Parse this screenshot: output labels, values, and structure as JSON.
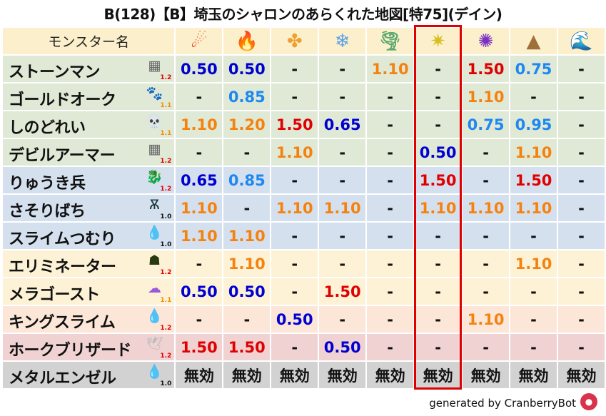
{
  "title": "B(128)【B】埼玉のシャロンのあらくれた地図[特75](デイン)",
  "header": {
    "name_label": "モンスター名",
    "elements": [
      {
        "icon": "fireball-icon",
        "glyph": "☄",
        "color": "#e0401a"
      },
      {
        "icon": "flame-icon",
        "glyph": "🔥",
        "color": "#f05a1a"
      },
      {
        "icon": "explosion-icon",
        "glyph": "✤",
        "color": "#f0a030"
      },
      {
        "icon": "ice-flower-icon",
        "glyph": "❄",
        "color": "#5aa0e8"
      },
      {
        "icon": "tornado-icon",
        "glyph": "🌪",
        "color": "#5aa870"
      },
      {
        "icon": "lightning-star-icon",
        "glyph": "✷",
        "color": "#d8c020"
      },
      {
        "icon": "dark-swirl-icon",
        "glyph": "✺",
        "color": "#7a30c0"
      },
      {
        "icon": "earth-rock-icon",
        "glyph": "▲",
        "color": "#a0703a"
      },
      {
        "icon": "water-wave-icon",
        "glyph": "🌊",
        "color": "#2070d0"
      }
    ]
  },
  "highlight_column": 5,
  "colors": {
    "weak_strong": "#0000d0",
    "weak": "#1e88f0",
    "resist": "#f5820f",
    "resist_strong": "#e00000",
    "normal": "#111111",
    "highlight_border": "#e00000"
  },
  "monsters": [
    {
      "name": "ストーンマン",
      "icon": "brick-wall-icon",
      "glyph": "▦",
      "icolor": "#666",
      "level": "1.2",
      "bg": "#dfe9d6",
      "values": [
        "0.50",
        "0.50",
        "-",
        "-",
        "1.10",
        "-",
        "1.50",
        "0.75",
        "-"
      ]
    },
    {
      "name": "ゴールドオーク",
      "icon": "paw-icon",
      "glyph": "🐾",
      "icolor": "#e08a10",
      "level": "1.1",
      "bg": "#dfe9d6",
      "values": [
        "-",
        "0.85",
        "-",
        "-",
        "-",
        "-",
        "1.10",
        "-",
        "-"
      ]
    },
    {
      "name": "しのどれい",
      "icon": "skull-icon",
      "glyph": "💀",
      "icolor": "#e89aa8",
      "level": "1.1",
      "bg": "#dfe9d6",
      "values": [
        "1.10",
        "1.20",
        "1.50",
        "0.65",
        "-",
        "-",
        "0.75",
        "0.95",
        "-"
      ]
    },
    {
      "name": "デビルアーマー",
      "icon": "brick-wall-icon",
      "glyph": "▦",
      "icolor": "#666",
      "level": "1.2",
      "bg": "#dfe9d6",
      "values": [
        "-",
        "-",
        "1.10",
        "-",
        "-",
        "0.50",
        "-",
        "1.10",
        "-"
      ]
    },
    {
      "name": "りゅうき兵",
      "icon": "dragon-icon",
      "glyph": "🐉",
      "icolor": "#c01818",
      "level": "1.2",
      "bg": "#d5e0ef",
      "values": [
        "0.65",
        "0.85",
        "-",
        "-",
        "-",
        "1.50",
        "-",
        "1.50",
        "-"
      ]
    },
    {
      "name": "さそりばち",
      "icon": "bug-icon",
      "glyph": "Ѫ",
      "icolor": "#1a3a3a",
      "level": "1.0",
      "bg": "#d5e0ef",
      "values": [
        "1.10",
        "-",
        "1.10",
        "1.10",
        "-",
        "1.10",
        "1.10",
        "1.10",
        "-"
      ]
    },
    {
      "name": "スライムつむり",
      "icon": "slime-icon",
      "glyph": "💧",
      "icolor": "#3a90e0",
      "level": "1.0",
      "bg": "#d5e0ef",
      "values": [
        "1.10",
        "1.10",
        "-",
        "-",
        "-",
        "-",
        "-",
        "-",
        "-"
      ]
    },
    {
      "name": "エリミネーター",
      "icon": "hooded-ghost-icon",
      "glyph": "☗",
      "icolor": "#2a3a10",
      "level": "1.2",
      "bg": "#fdf2d6",
      "values": [
        "-",
        "1.10",
        "-",
        "-",
        "-",
        "-",
        "-",
        "1.10",
        "-"
      ]
    },
    {
      "name": "メラゴースト",
      "icon": "purple-ghost-icon",
      "glyph": "☁",
      "icolor": "#9a5ad8",
      "level": "1.1",
      "bg": "#fdf2d6",
      "values": [
        "0.50",
        "0.50",
        "-",
        "1.50",
        "-",
        "-",
        "-",
        "-",
        "-"
      ]
    },
    {
      "name": "キングスライム",
      "icon": "slime-icon",
      "glyph": "💧",
      "icolor": "#3a90e0",
      "level": "1.2",
      "bg": "#fbe6d8",
      "values": [
        "-",
        "-",
        "0.50",
        "-",
        "-",
        "-",
        "1.10",
        "-",
        "-"
      ]
    },
    {
      "name": "ホークブリザード",
      "icon": "wing-icon",
      "glyph": "🕊",
      "icolor": "#bbb",
      "level": "1.2",
      "bg": "#f0d2d2",
      "values": [
        "1.50",
        "1.50",
        "-",
        "0.50",
        "-",
        "-",
        "-",
        "-",
        "-"
      ]
    },
    {
      "name": "メタルエンゼル",
      "icon": "slime-icon",
      "glyph": "💧",
      "icolor": "#3a90e0",
      "level": "1.0",
      "bg": "#d2d2d2",
      "values": [
        "無効",
        "無効",
        "無効",
        "無効",
        "無効",
        "無効",
        "無効",
        "無効",
        "無効"
      ]
    }
  ],
  "footer": {
    "text": "generated by CranberryBot",
    "logo": "cranberry-bot-logo"
  }
}
